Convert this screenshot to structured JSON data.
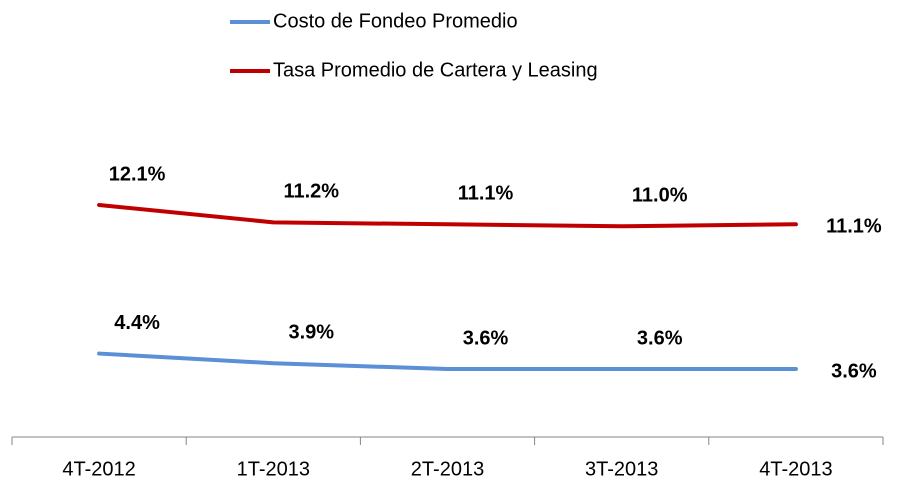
{
  "chart_data": {
    "type": "line",
    "categories": [
      "4T-2012",
      "1T-2013",
      "2T-2013",
      "3T-2013",
      "4T-2013"
    ],
    "series": [
      {
        "name": "Costo de Fondeo Promedio",
        "color": "#5b8fd6",
        "values": [
          4.4,
          3.9,
          3.6,
          3.6,
          3.6
        ],
        "value_labels": [
          "4.4%",
          "3.9%",
          "3.6%",
          "3.6%",
          "3.6%"
        ]
      },
      {
        "name": "Tasa Promedio de Cartera y Leasing",
        "color": "#c00000",
        "values": [
          12.1,
          11.2,
          11.1,
          11.0,
          11.1
        ],
        "value_labels": [
          "12.1%",
          "11.2%",
          "11.1%",
          "11.0%",
          "11.1%"
        ]
      }
    ],
    "legend": "top"
  }
}
